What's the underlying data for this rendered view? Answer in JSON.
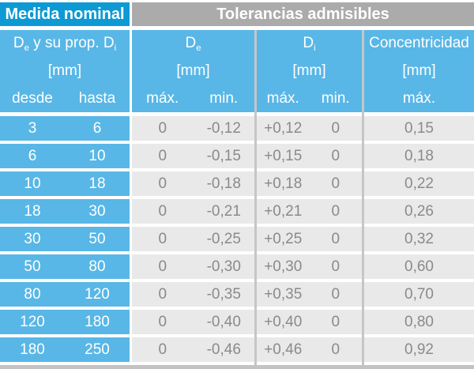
{
  "colors": {
    "dark_blue": "#0d9ad4",
    "light_blue": "#58b7e6",
    "header_gray": "#ababab",
    "cell_gray": "#e9e9e9",
    "divider_gray": "#c6c6c6",
    "bottom_strip_gray": "#c3c3c3",
    "data_text_gray": "#8a8a8a",
    "header_text": "#ffffff"
  },
  "title": {
    "left": "Medida nominal",
    "right": "Tolerancias admisibles"
  },
  "subheader": {
    "size_group": {
      "symbol1": "D",
      "sub1": "e",
      "middle": " y su prop. ",
      "symbol2": "D",
      "sub2": "i",
      "unit": "[mm]",
      "col_from": "desde",
      "col_to": "hasta"
    },
    "de_group": {
      "symbol": "D",
      "sub": "e",
      "unit": "[mm]",
      "col_max": "máx.",
      "col_min": "min."
    },
    "di_group": {
      "symbol": "D",
      "sub": "i",
      "unit": "[mm]",
      "col_max": "máx.",
      "col_min": "min."
    },
    "conc_group": {
      "label": "Concentricidad",
      "unit": "[mm]",
      "col_max": "máx."
    }
  },
  "rows": [
    {
      "desde": "3",
      "hasta": "6",
      "de_max": "0",
      "de_min": "-0,12",
      "di_max": "+0,12",
      "di_min": "0",
      "conc": "0,15"
    },
    {
      "desde": "6",
      "hasta": "10",
      "de_max": "0",
      "de_min": "-0,15",
      "di_max": "+0,15",
      "di_min": "0",
      "conc": "0,18"
    },
    {
      "desde": "10",
      "hasta": "18",
      "de_max": "0",
      "de_min": "-0,18",
      "di_max": "+0,18",
      "di_min": "0",
      "conc": "0,22"
    },
    {
      "desde": "18",
      "hasta": "30",
      "de_max": "0",
      "de_min": "-0,21",
      "di_max": "+0,21",
      "di_min": "0",
      "conc": "0,26"
    },
    {
      "desde": "30",
      "hasta": "50",
      "de_max": "0",
      "de_min": "-0,25",
      "di_max": "+0,25",
      "di_min": "0",
      "conc": "0,32"
    },
    {
      "desde": "50",
      "hasta": "80",
      "de_max": "0",
      "de_min": "-0,30",
      "di_max": "+0,30",
      "di_min": "0",
      "conc": "0,60"
    },
    {
      "desde": "80",
      "hasta": "120",
      "de_max": "0",
      "de_min": "-0,35",
      "di_max": "+0,35",
      "di_min": "0",
      "conc": "0,70"
    },
    {
      "desde": "120",
      "hasta": "180",
      "de_max": "0",
      "de_min": "-0,40",
      "di_max": "+0,40",
      "di_min": "0",
      "conc": "0,80"
    },
    {
      "desde": "180",
      "hasta": "250",
      "de_max": "0",
      "de_min": "-0,46",
      "di_max": "+0,46",
      "di_min": "0",
      "conc": "0,92"
    }
  ]
}
